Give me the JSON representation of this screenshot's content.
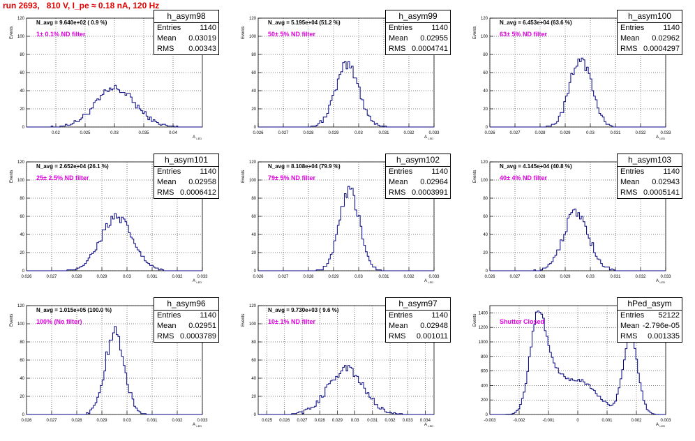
{
  "page_title": "run 2693,   810 V, I_pe ≈ 0.18 nA, 120 Hz",
  "chart_data": [
    {
      "type": "bar",
      "name": "h_asym98",
      "navg": "N_avg = 9.640e+02 ( 0.9 %)",
      "filter": "1± 0.1% ND filter",
      "entries": "1140",
      "mean": "0.03019",
      "rms": "0.00343",
      "xlim": [
        0.015,
        0.045
      ],
      "ylim": [
        0,
        120
      ],
      "xticks": [
        "0.02",
        "0.025",
        "0.03",
        "0.035",
        "0.04"
      ],
      "yticks": [
        "0",
        "20",
        "40",
        "60",
        "80",
        "100",
        "120"
      ],
      "ylabel": "Events",
      "xlabel": "A_{LED}",
      "dist": "gauss",
      "mu": 0.0302,
      "sigma": 0.0034,
      "peak": 42,
      "nbins": 100
    },
    {
      "type": "bar",
      "name": "h_asym99",
      "navg": "N_avg = 5.195e+04 (51.2 %)",
      "filter": "50± 5% ND filter",
      "entries": "1140",
      "mean": "0.02955",
      "rms": "0.0004741",
      "xlim": [
        0.026,
        0.033
      ],
      "ylim": [
        0,
        120
      ],
      "xticks": [
        "0.026",
        "0.027",
        "0.028",
        "0.029",
        "0.03",
        "0.031",
        "0.032",
        "0.033"
      ],
      "yticks": [
        "0",
        "20",
        "40",
        "60",
        "80",
        "100",
        "120"
      ],
      "ylabel": "Events",
      "xlabel": "A_{LED}",
      "dist": "gauss",
      "mu": 0.02955,
      "sigma": 0.00047,
      "peak": 68,
      "nbins": 100
    },
    {
      "type": "bar",
      "name": "h_asym100",
      "navg": "N_avg = 6.453e+04 (63.6 %)",
      "filter": "63± 5% ND filter",
      "entries": "1140",
      "mean": "0.02962",
      "rms": "0.0004297",
      "xlim": [
        0.026,
        0.033
      ],
      "ylim": [
        0,
        120
      ],
      "xticks": [
        "0.026",
        "0.027",
        "0.028",
        "0.029",
        "0.03",
        "0.031",
        "0.032",
        "0.033"
      ],
      "yticks": [
        "0",
        "20",
        "40",
        "60",
        "80",
        "100",
        "120"
      ],
      "ylabel": "Events",
      "xlabel": "A_{LED}",
      "dist": "gauss",
      "mu": 0.02962,
      "sigma": 0.00043,
      "peak": 76,
      "nbins": 100
    },
    {
      "type": "bar",
      "name": "h_asym101",
      "navg": "N_avg = 2.652e+04 (26.1 %)",
      "filter": "25± 2.5% ND filter",
      "entries": "1140",
      "mean": "0.02958",
      "rms": "0.0006412",
      "xlim": [
        0.026,
        0.033
      ],
      "ylim": [
        0,
        120
      ],
      "xticks": [
        "0.026",
        "0.027",
        "0.028",
        "0.029",
        "0.03",
        "0.031",
        "0.032",
        "0.033"
      ],
      "yticks": [
        "0",
        "20",
        "40",
        "60",
        "80",
        "100",
        "120"
      ],
      "ylabel": "Events",
      "xlabel": "A_{LED}",
      "dist": "gauss",
      "mu": 0.02958,
      "sigma": 0.00064,
      "peak": 58,
      "nbins": 100
    },
    {
      "type": "bar",
      "name": "h_asym102",
      "navg": "N_avg = 8.108e+04 (79.9 %)",
      "filter": "79± 5% ND filter",
      "entries": "1140",
      "mean": "0.02964",
      "rms": "0.0003991",
      "xlim": [
        0.026,
        0.033
      ],
      "ylim": [
        0,
        120
      ],
      "xticks": [
        "0.026",
        "0.027",
        "0.028",
        "0.029",
        "0.03",
        "0.031",
        "0.032",
        "0.033"
      ],
      "yticks": [
        "0",
        "20",
        "40",
        "60",
        "80",
        "100",
        "120"
      ],
      "ylabel": "Events",
      "xlabel": "A_{LED}",
      "dist": "gauss",
      "mu": 0.02964,
      "sigma": 0.0004,
      "peak": 88,
      "nbins": 100
    },
    {
      "type": "bar",
      "name": "h_asym103",
      "navg": "N_avg = 4.145e+04 (40.8 %)",
      "filter": "40± 4% ND filter",
      "entries": "1140",
      "mean": "0.02943",
      "rms": "0.0005141",
      "xlim": [
        0.026,
        0.033
      ],
      "ylim": [
        0,
        120
      ],
      "xticks": [
        "0.026",
        "0.027",
        "0.028",
        "0.029",
        "0.03",
        "0.031",
        "0.032",
        "0.033"
      ],
      "yticks": [
        "0",
        "20",
        "40",
        "60",
        "80",
        "100",
        "120"
      ],
      "ylabel": "Events",
      "xlabel": "A_{LED}",
      "dist": "gauss",
      "mu": 0.02943,
      "sigma": 0.00051,
      "peak": 64,
      "nbins": 100
    },
    {
      "type": "bar",
      "name": "h_asym96",
      "navg": "N_avg = 1.015e+05 (100.0 %)",
      "filter": "100% (No filter)",
      "entries": "1140",
      "mean": "0.02951",
      "rms": "0.0003789",
      "xlim": [
        0.026,
        0.033
      ],
      "ylim": [
        0,
        120
      ],
      "xticks": [
        "0.026",
        "0.027",
        "0.028",
        "0.029",
        "0.03",
        "0.031",
        "0.032",
        "0.033"
      ],
      "yticks": [
        "0",
        "20",
        "40",
        "60",
        "80",
        "100",
        "120"
      ],
      "ylabel": "Events",
      "xlabel": "A_{LED}",
      "dist": "gauss",
      "mu": 0.02951,
      "sigma": 0.00038,
      "peak": 90,
      "nbins": 100
    },
    {
      "type": "bar",
      "name": "h_asym97",
      "navg": "N_avg = 9.730e+03 ( 9.6 %)",
      "filter": "10± 1% ND filter",
      "entries": "1140",
      "mean": "0.02948",
      "rms": "0.001011",
      "xlim": [
        0.0245,
        0.0345
      ],
      "ylim": [
        0,
        120
      ],
      "xticks": [
        "0.025",
        "0.026",
        "0.027",
        "0.028",
        "0.029",
        "0.03",
        "0.031",
        "0.032",
        "0.033",
        "0.034"
      ],
      "yticks": [
        "0",
        "20",
        "40",
        "60",
        "80",
        "100",
        "120"
      ],
      "ylabel": "Events",
      "xlabel": "A_{LED}",
      "dist": "gauss",
      "mu": 0.02948,
      "sigma": 0.00101,
      "peak": 50,
      "nbins": 100
    },
    {
      "type": "bar",
      "name": "hPed_asym",
      "navg": "",
      "filter": "Shutter Closed",
      "entries": "52122",
      "mean": "-2.796e-05",
      "rms": "0.001335",
      "xlim": [
        -0.003,
        0.003
      ],
      "ylim": [
        0,
        1500
      ],
      "xticks": [
        "-0.003",
        "-0.002",
        "-0.001",
        "0",
        "0.001",
        "0.002",
        "0.003"
      ],
      "yticks": [
        "0",
        "200",
        "400",
        "600",
        "800",
        "1000",
        "1200",
        "1400"
      ],
      "ylabel": "Events",
      "xlabel": "A_{LED}",
      "dist": "ped",
      "nbins": 100
    }
  ]
}
